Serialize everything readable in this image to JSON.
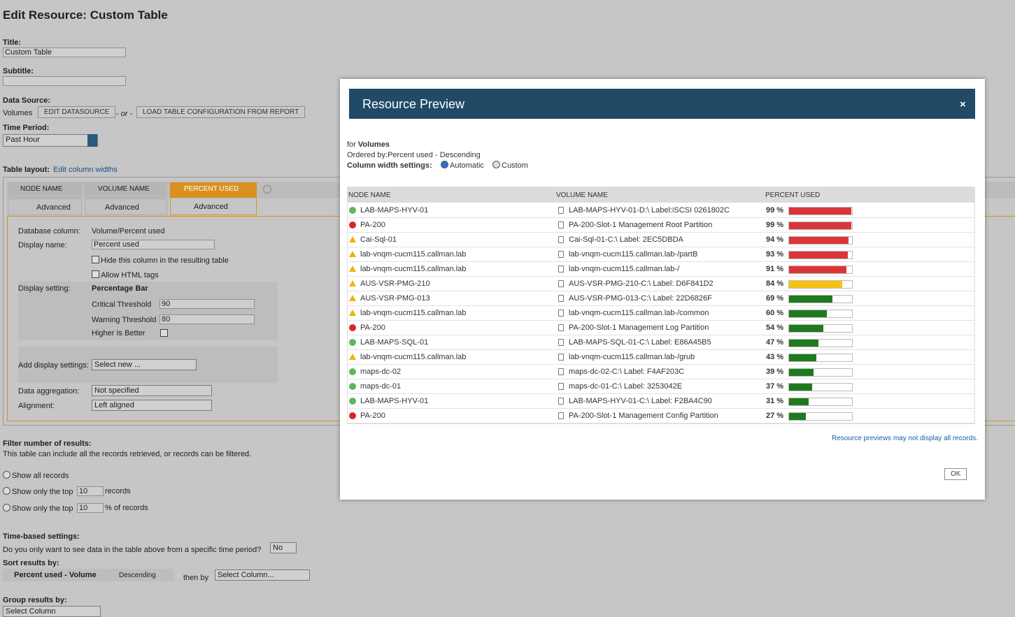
{
  "header": {
    "title": "Edit Resource: Custom Table"
  },
  "form": {
    "title_label": "Title:",
    "title_value": "Custom Table",
    "subtitle_label": "Subtitle:",
    "data_source_label": "Data Source:",
    "data_source_value": "Volumes",
    "edit_datasource": "EDIT DATASOURCE",
    "or": "- or -",
    "load_config": "LOAD TABLE CONFIGURATION FROM REPORT",
    "time_period_label": "Time Period:",
    "time_period_value": "Past Hour",
    "table_layout_label": "Table layout:",
    "edit_widths": "Edit column widths",
    "columns": [
      {
        "name": "NODE NAME",
        "advanced": "Advanced"
      },
      {
        "name": "VOLUME NAME",
        "advanced": "Advanced"
      },
      {
        "name": "PERCENT USED",
        "advanced": "Advanced"
      }
    ],
    "column_settings": {
      "database_column_label": "Database column:",
      "database_column_value": "Volume/Percent used",
      "display_name_label": "Display name:",
      "display_name_value": "Percent used",
      "hide_column": "Hide this column in the resulting table",
      "allow_html": "Allow HTML tags",
      "display_setting_label": "Display setting:",
      "display_setting_value": "Percentage Bar",
      "critical_label": "Critical Threshold",
      "critical_threshold": "90",
      "warning_label": "Warning Threshold",
      "warning_threshold": "80",
      "higher_better": "Higher Is Better",
      "add_display_label": "Add display settings:",
      "add_display_value": "Select new ...",
      "aggregation_label": "Data aggregation:",
      "aggregation_value": "Not specified",
      "alignment_label": "Alignment:",
      "alignment_value": "Left aligned"
    },
    "filter": {
      "label": "Filter number of results:",
      "description": "This table can include all the records retrieved, or records can be filtered.",
      "show_all": "Show all records",
      "show_top": "Show only the top",
      "top_count": "10",
      "records": "records",
      "show_top_percent": "Show only the top",
      "top_percent": "10",
      "percent_records": "% of records"
    },
    "time_based": {
      "label": "Time-based settings:",
      "question": "Do you only want to see data in the table above from a specific time period?",
      "value": "No"
    },
    "sort": {
      "label": "Sort results by:",
      "column": "Percent used - Volume",
      "order": "Descending",
      "then_by": "then by",
      "then_value": "Select Column..."
    },
    "group": {
      "label": "Group results by:",
      "value": "Select Column"
    }
  },
  "modal": {
    "title": "Resource Preview",
    "for": "for",
    "source": "Volumes",
    "ordered_label": "Ordered by:",
    "ordered_value": "Percent used - Descending",
    "width_label": "Column width settings:",
    "automatic": "Automatic",
    "custom": "Custom",
    "headers": [
      "NODE NAME",
      "VOLUME NAME",
      "PERCENT USED"
    ],
    "rows": [
      {
        "node": "LAB-MAPS-HYV-01",
        "status": "up",
        "volume": "LAB-MAPS-HYV-01-D:\\ Label:iSCSI 0261802C",
        "percent": {
          "value": 99,
          "label": "99 %"
        }
      },
      {
        "node": "PA-200",
        "status": "critical",
        "volume": "PA-200-Slot-1 Management Root Partition",
        "percent": {
          "value": 99,
          "label": "99 %"
        }
      },
      {
        "node": "Cai-Sql-01",
        "status": "warning",
        "volume": "Cai-Sql-01-C:\\ Label: 2EC5DBDA",
        "percent": {
          "value": 94,
          "label": "94 %"
        }
      },
      {
        "node": "lab-vnqm-cucm115.callman.lab",
        "status": "warning",
        "volume": "lab-vnqm-cucm115.callman.lab-/partB",
        "percent": {
          "value": 93,
          "label": "93 %"
        }
      },
      {
        "node": "lab-vnqm-cucm115.callman.lab",
        "status": "warning",
        "volume": "lab-vnqm-cucm115.callman.lab-/",
        "percent": {
          "value": 91,
          "label": "91 %"
        }
      },
      {
        "node": "AUS-VSR-PMG-210",
        "status": "warning",
        "volume": "AUS-VSR-PMG-210-C:\\ Label: D6F841D2",
        "percent": {
          "value": 84,
          "label": "84 %"
        }
      },
      {
        "node": "AUS-VSR-PMG-013",
        "status": "warning",
        "volume": "AUS-VSR-PMG-013-C:\\ Label: 22D6826F",
        "percent": {
          "value": 69,
          "label": "69 %"
        }
      },
      {
        "node": "lab-vnqm-cucm115.callman.lab",
        "status": "warning",
        "volume": "lab-vnqm-cucm115.callman.lab-/common",
        "percent": {
          "value": 60,
          "label": "60 %"
        }
      },
      {
        "node": "PA-200",
        "status": "critical",
        "volume": "PA-200-Slot-1 Management Log Partition",
        "percent": {
          "value": 54,
          "label": "54 %"
        }
      },
      {
        "node": "LAB-MAPS-SQL-01",
        "status": "up",
        "volume": "LAB-MAPS-SQL-01-C:\\ Label: E86A45B5",
        "percent": {
          "value": 47,
          "label": "47 %"
        }
      },
      {
        "node": "lab-vnqm-cucm115.callman.lab",
        "status": "warning",
        "volume": "lab-vnqm-cucm115.callman.lab-/grub",
        "percent": {
          "value": 43,
          "label": "43 %"
        }
      },
      {
        "node": "maps-dc-02",
        "status": "up",
        "volume": "maps-dc-02-C:\\ Label: F4AF203C",
        "percent": {
          "value": 39,
          "label": "39 %"
        }
      },
      {
        "node": "maps-dc-01",
        "status": "up",
        "volume": "maps-dc-01-C:\\ Label: 3253042E",
        "percent": {
          "value": 37,
          "label": "37 %"
        }
      },
      {
        "node": "LAB-MAPS-HYV-01",
        "status": "up",
        "volume": "LAB-MAPS-HYV-01-C:\\ Label: F2BA4C90",
        "percent": {
          "value": 31,
          "label": "31 %"
        }
      },
      {
        "node": "PA-200",
        "status": "critical",
        "volume": "PA-200-Slot-1 Management Config Partition",
        "percent": {
          "value": 27,
          "label": "27 %"
        }
      }
    ],
    "note": "Resource previews may not display all records.",
    "ok": "OK"
  }
}
